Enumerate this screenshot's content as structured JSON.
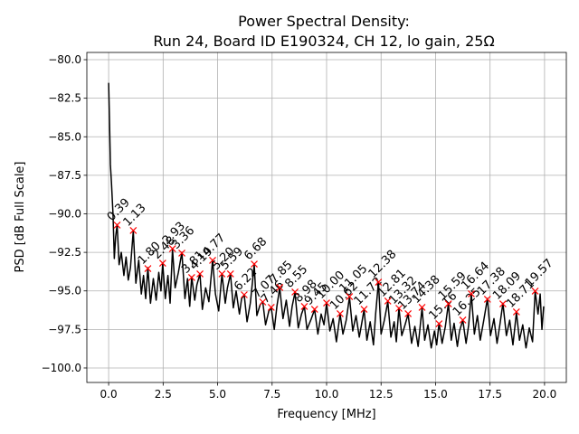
{
  "chart_data": {
    "type": "line",
    "title": [
      "Power Spectral Density:",
      "Run 24, Board ID E190324, CH 12, lo gain, 25Ω"
    ],
    "xlabel": "Frequency [MHz]",
    "ylabel": "PSD [dB Full Scale]",
    "color": "#000000",
    "marker_color": "#ff0000",
    "grid": true,
    "xlim": [
      -1,
      21
    ],
    "ylim": [
      -100.94,
      -79.53
    ],
    "xticks": [
      {
        "value": 0,
        "label": "0.0"
      },
      {
        "value": 2.5,
        "label": "2.5"
      },
      {
        "value": 5,
        "label": "5.0"
      },
      {
        "value": 7.5,
        "label": "7.5"
      },
      {
        "value": 10,
        "label": "10.0"
      },
      {
        "value": 12.5,
        "label": "12.5"
      },
      {
        "value": 15,
        "label": "15.0"
      },
      {
        "value": 17.5,
        "label": "17.5"
      },
      {
        "value": 20,
        "label": "20.0"
      }
    ],
    "yticks": [
      {
        "value": -100,
        "label": "−100.0"
      },
      {
        "value": -97.5,
        "label": "−97.5"
      },
      {
        "value": -95,
        "label": "−95.0"
      },
      {
        "value": -92.5,
        "label": "−92.5"
      },
      {
        "value": -90,
        "label": "−90.0"
      },
      {
        "value": -87.5,
        "label": "−87.5"
      },
      {
        "value": -85,
        "label": "−85.0"
      },
      {
        "value": -82.5,
        "label": "−82.5"
      },
      {
        "value": -80,
        "label": "−80.0"
      }
    ],
    "x": [
      0,
      0.04,
      0.08,
      0.13,
      0.2,
      0.26,
      0.32,
      0.39,
      0.48,
      0.58,
      0.7,
      0.8,
      0.9,
      1.0,
      1.13,
      1.25,
      1.38,
      1.5,
      1.6,
      1.7,
      1.8,
      1.92,
      2.05,
      2.18,
      2.3,
      2.4,
      2.48,
      2.6,
      2.72,
      2.82,
      2.93,
      3.05,
      3.2,
      3.36,
      3.5,
      3.62,
      3.72,
      3.81,
      3.95,
      4.05,
      4.19,
      4.3,
      4.45,
      4.6,
      4.77,
      4.9,
      5.05,
      5.2,
      5.35,
      5.45,
      5.59,
      5.72,
      5.85,
      6.0,
      6.1,
      6.22,
      6.35,
      6.5,
      6.68,
      6.8,
      6.95,
      7.07,
      7.2,
      7.35,
      7.46,
      7.6,
      7.72,
      7.85,
      8.0,
      8.15,
      8.3,
      8.42,
      8.55,
      8.7,
      8.85,
      8.98,
      9.1,
      9.3,
      9.45,
      9.6,
      9.75,
      9.88,
      10.0,
      10.15,
      10.3,
      10.45,
      10.62,
      10.75,
      10.9,
      11.05,
      11.2,
      11.35,
      11.5,
      11.6,
      11.72,
      11.85,
      12.0,
      12.15,
      12.25,
      12.38,
      12.5,
      12.65,
      12.81,
      12.95,
      13.1,
      13.2,
      13.32,
      13.45,
      13.6,
      13.74,
      13.9,
      14.05,
      14.2,
      14.38,
      14.5,
      14.65,
      14.8,
      14.95,
      15.05,
      15.16,
      15.3,
      15.45,
      15.59,
      15.72,
      15.85,
      16.0,
      16.1,
      16.25,
      16.4,
      16.52,
      16.64,
      16.78,
      16.92,
      17.05,
      17.2,
      17.38,
      17.52,
      17.68,
      17.82,
      17.95,
      18.09,
      18.25,
      18.4,
      18.55,
      18.71,
      18.85,
      19.0,
      19.15,
      19.3,
      19.45,
      19.57,
      19.7,
      19.8,
      19.88,
      19.96
    ],
    "values": [
      -81.5,
      -84,
      -86.8,
      -88,
      -90,
      -92.9,
      -91.5,
      -90.7,
      -93.3,
      -92.5,
      -94,
      -92.8,
      -94.3,
      -93.5,
      -91.1,
      -94.5,
      -93,
      -95.2,
      -94,
      -95.5,
      -93.5,
      -95.8,
      -94.2,
      -95.6,
      -93.8,
      -95,
      -93.2,
      -95.5,
      -94,
      -95.8,
      -92.3,
      -94.8,
      -93.8,
      -92.5,
      -95.5,
      -94.2,
      -96,
      -94.1,
      -95.6,
      -94.6,
      -93.9,
      -96.2,
      -94.8,
      -95.7,
      -93,
      -95.2,
      -96.3,
      -93.9,
      -95.8,
      -94.8,
      -93.9,
      -96.1,
      -95,
      -96.5,
      -95.5,
      -95.25,
      -97,
      -95.8,
      -93.3,
      -96.6,
      -95.9,
      -95.7,
      -97.2,
      -96.3,
      -96.1,
      -97.5,
      -96,
      -94.8,
      -96.8,
      -95.6,
      -97.3,
      -96,
      -95.1,
      -97.4,
      -96.5,
      -96,
      -97.5,
      -96.8,
      -96.2,
      -97.8,
      -96.5,
      -97.2,
      -95.8,
      -97.6,
      -96.8,
      -98.3,
      -96.5,
      -97.8,
      -96.9,
      -95.4,
      -97.6,
      -96.6,
      -98,
      -97.2,
      -96.2,
      -98.2,
      -97,
      -98.5,
      -96.5,
      -94.4,
      -97.8,
      -96.9,
      -95.7,
      -98,
      -97,
      -98.3,
      -96.1,
      -97.9,
      -97.2,
      -96.5,
      -98.4,
      -97.3,
      -98.6,
      -96.1,
      -98.2,
      -97.2,
      -98.7,
      -97.6,
      -98.5,
      -97.1,
      -98.4,
      -97.3,
      -95.8,
      -98.2,
      -97.1,
      -98.6,
      -97.6,
      -96.9,
      -98.4,
      -97.2,
      -95.2,
      -97.8,
      -96.6,
      -98.2,
      -97,
      -95.5,
      -97.9,
      -96.8,
      -98.4,
      -97.2,
      -95.8,
      -97.9,
      -96.9,
      -98.5,
      -96.4,
      -98.2,
      -97.2,
      -98.7,
      -97.4,
      -98.3,
      -95,
      -96.5,
      -95.2,
      -97.5,
      -96
    ],
    "peaks": {
      "x": [
        0.39,
        1.13,
        1.8,
        2.48,
        2.93,
        3.36,
        3.81,
        4.19,
        4.77,
        5.2,
        5.59,
        6.22,
        6.68,
        7.07,
        7.46,
        7.85,
        8.55,
        8.98,
        9.45,
        10.0,
        10.62,
        11.05,
        11.72,
        12.38,
        12.81,
        13.32,
        13.74,
        14.38,
        15.16,
        15.59,
        16.25,
        16.64,
        17.38,
        18.09,
        18.71,
        19.57
      ],
      "y": [
        -90.73,
        -91.08,
        -93.55,
        -93.2,
        -92.26,
        -92.55,
        -94.13,
        -93.9,
        -93.02,
        -93.9,
        -93.9,
        -95.25,
        -93.26,
        -95.72,
        -96.07,
        -94.78,
        -95.07,
        -96.01,
        -96.19,
        -95.78,
        -96.48,
        -95.37,
        -96.19,
        -94.43,
        -95.66,
        -96.13,
        -96.48,
        -96.07,
        -97.13,
        -95.84,
        -96.89,
        -95.19,
        -95.54,
        -95.84,
        -96.36,
        -95.01
      ],
      "labels": [
        "0.39",
        "1.13",
        "1.80",
        "2.48",
        "2.93",
        "3.36",
        "3.81",
        "4.19",
        "4.77",
        "5.20",
        "5.59",
        "6.22",
        "6.68",
        "7.07",
        "7.46",
        "7.85",
        "8.55",
        "8.98",
        "9.45",
        "10.00",
        "10.62",
        "11.05",
        "11.72",
        "12.38",
        "12.81",
        "13.32",
        "13.74",
        "14.38",
        "15.16",
        "15.59",
        "16.25",
        "16.64",
        "17.38",
        "18.09",
        "18.71",
        "19.57"
      ]
    }
  }
}
